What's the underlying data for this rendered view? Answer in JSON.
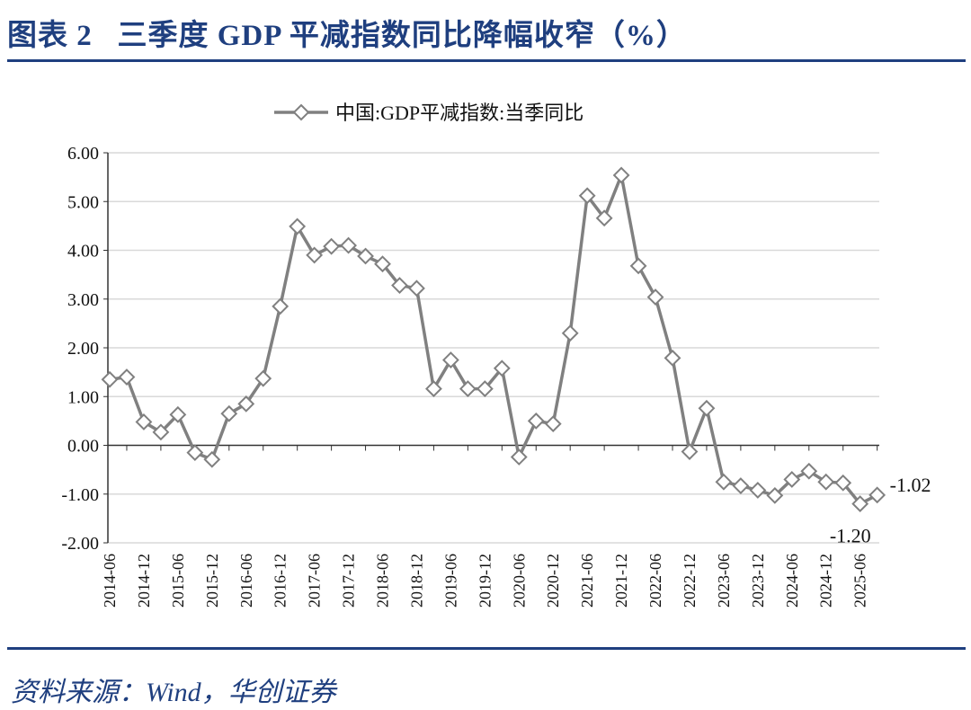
{
  "title": "图表 2   三季度 GDP 平减指数同比降幅收窄（%）",
  "source": "资料来源：Wind，华创证券",
  "colors": {
    "accent": "#1f3f7f",
    "series": "#808080",
    "grid": "#d9d9d9"
  },
  "chart_data": {
    "type": "line",
    "title": "",
    "xlabel": "",
    "ylabel": "",
    "ylim": [
      -2,
      6
    ],
    "yticks": [
      "6.00",
      "5.00",
      "4.00",
      "3.00",
      "2.00",
      "1.00",
      "0.00",
      "-1.00",
      "-2.00"
    ],
    "ytick_values": [
      6,
      5,
      4,
      3,
      2,
      1,
      0,
      -1,
      -2
    ],
    "grid": true,
    "legend": {
      "placement": "top-center",
      "entries": [
        "中国:GDP平减指数:当季同比"
      ]
    },
    "xtick_labels": [
      "2014-06",
      "2014-12",
      "2015-06",
      "2015-12",
      "2016-06",
      "2016-12",
      "2017-06",
      "2017-12",
      "2018-06",
      "2018-12",
      "2019-06",
      "2019-12",
      "2020-06",
      "2020-12",
      "2021-06",
      "2021-12",
      "2022-06",
      "2022-12",
      "2023-06",
      "2023-12",
      "2024-06",
      "2024-12",
      "2025-06"
    ],
    "x": [
      "2014-06",
      "2014-09",
      "2014-12",
      "2015-03",
      "2015-06",
      "2015-09",
      "2015-12",
      "2016-03",
      "2016-06",
      "2016-09",
      "2016-12",
      "2017-03",
      "2017-06",
      "2017-09",
      "2017-12",
      "2018-03",
      "2018-06",
      "2018-09",
      "2018-12",
      "2019-03",
      "2019-06",
      "2019-09",
      "2019-12",
      "2020-03",
      "2020-06",
      "2020-09",
      "2020-12",
      "2021-03",
      "2021-06",
      "2021-09",
      "2021-12",
      "2022-03",
      "2022-06",
      "2022-09",
      "2022-12",
      "2023-03",
      "2023-06",
      "2023-09",
      "2023-12",
      "2024-03",
      "2024-06",
      "2024-09",
      "2024-12",
      "2025-03",
      "2025-06",
      "2025-09"
    ],
    "series": [
      {
        "name": "中国:GDP平减指数:当季同比",
        "values": [
          1.35,
          1.4,
          0.48,
          0.27,
          0.63,
          -0.15,
          -0.29,
          0.65,
          0.85,
          1.37,
          2.85,
          4.49,
          3.9,
          4.08,
          4.1,
          3.88,
          3.72,
          3.28,
          3.22,
          1.16,
          1.75,
          1.16,
          1.16,
          1.58,
          -0.24,
          0.5,
          0.44,
          2.3,
          5.12,
          4.66,
          5.54,
          3.68,
          3.04,
          1.79,
          -0.13,
          0.76,
          -0.75,
          -0.83,
          -0.92,
          -1.03,
          -0.7,
          -0.53,
          -0.75,
          -0.77,
          -1.2,
          -1.02
        ]
      }
    ],
    "annotations": [
      {
        "x": "2025-06",
        "text": "-1.20"
      },
      {
        "x": "2025-09",
        "text": "-1.02"
      }
    ]
  }
}
